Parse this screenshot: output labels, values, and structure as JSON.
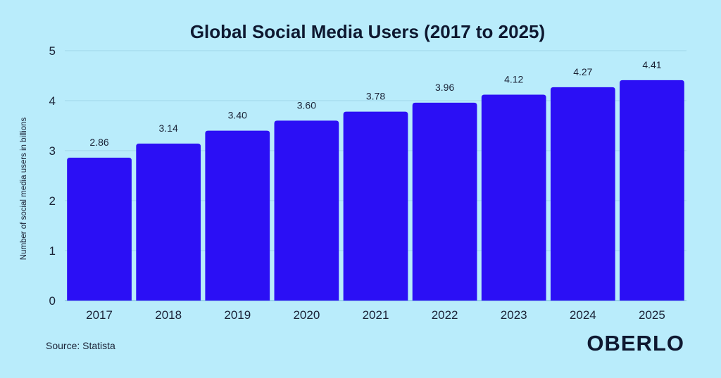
{
  "chart_data": {
    "type": "bar",
    "title": "Global Social Media Users (2017 to 2025)",
    "ylabel": "Number of social media users in billions",
    "xlabel": "",
    "categories": [
      "2017",
      "2018",
      "2019",
      "2020",
      "2021",
      "2022",
      "2023",
      "2024",
      "2025"
    ],
    "values": [
      2.86,
      3.14,
      3.4,
      3.6,
      3.78,
      3.96,
      4.12,
      4.27,
      4.41
    ],
    "value_labels": [
      "2.86",
      "3.14",
      "3.40",
      "3.60",
      "3.78",
      "3.96",
      "4.12",
      "4.27",
      "4.41"
    ],
    "ylim": [
      0,
      5
    ],
    "yticks": [
      "0",
      "1",
      "2",
      "3",
      "4",
      "5"
    ],
    "grid": true,
    "bar_color": "#2b0ff5"
  },
  "footer": {
    "source": "Source: Statista",
    "logo": "OBERLO"
  }
}
